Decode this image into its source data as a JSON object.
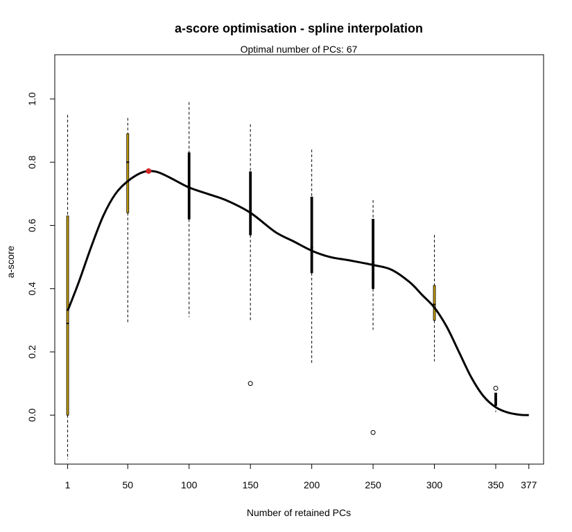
{
  "chart_data": {
    "type": "boxplot",
    "title": "a-score optimisation - spline interpolation",
    "subtitle": "Optimal number of PCs: 67",
    "xlabel": "Number of retained PCs",
    "ylabel": "a-score",
    "xlim": [
      -9.5,
      389
    ],
    "ylim": [
      -0.155,
      1.14
    ],
    "x_ticks": [
      1,
      50,
      100,
      150,
      200,
      250,
      300,
      350,
      377
    ],
    "y_ticks": [
      0.0,
      0.2,
      0.4,
      0.6,
      0.8,
      1.0
    ],
    "boxes": [
      {
        "x": 1,
        "whisker_low": -0.14,
        "q1": 0.0,
        "median": 0.29,
        "q3": 0.63,
        "whisker_high": 0.95,
        "box_color": "#c8a000",
        "outliers": []
      },
      {
        "x": 50,
        "whisker_low": 0.29,
        "q1": 0.64,
        "median": 0.8,
        "q3": 0.89,
        "whisker_high": 0.94,
        "box_color": "#c8a000",
        "outliers": []
      },
      {
        "x": 100,
        "whisker_low": 0.31,
        "q1": 0.62,
        "median": 0.72,
        "q3": 0.83,
        "whisker_high": 0.99,
        "box_color": "#000000",
        "outliers": []
      },
      {
        "x": 150,
        "whisker_low": 0.3,
        "q1": 0.57,
        "median": 0.64,
        "q3": 0.77,
        "whisker_high": 0.92,
        "box_color": "#000000",
        "outliers": [
          0.1
        ]
      },
      {
        "x": 200,
        "whisker_low": 0.16,
        "q1": 0.45,
        "median": 0.53,
        "q3": 0.69,
        "whisker_high": 0.84,
        "box_color": "#000000",
        "outliers": []
      },
      {
        "x": 250,
        "whisker_low": 0.27,
        "q1": 0.4,
        "median": 0.48,
        "q3": 0.62,
        "whisker_high": 0.68,
        "box_color": "#000000",
        "outliers": [
          -0.055
        ]
      },
      {
        "x": 300,
        "whisker_low": 0.17,
        "q1": 0.3,
        "median": 0.35,
        "q3": 0.41,
        "whisker_high": 0.57,
        "box_color": "#c8a000",
        "outliers": []
      },
      {
        "x": 350,
        "whisker_low": 0.01,
        "q1": 0.03,
        "median": 0.05,
        "q3": 0.07,
        "whisker_high": 0.07,
        "box_color": "#000000",
        "outliers": [
          0.085
        ]
      }
    ],
    "spline": {
      "x": [
        1,
        10,
        20,
        30,
        40,
        50,
        60,
        67,
        75,
        85,
        100,
        115,
        130,
        150,
        170,
        185,
        200,
        215,
        230,
        250,
        265,
        280,
        290,
        300,
        310,
        320,
        330,
        340,
        350,
        360,
        370,
        377
      ],
      "y": [
        0.33,
        0.42,
        0.53,
        0.63,
        0.7,
        0.74,
        0.765,
        0.772,
        0.768,
        0.75,
        0.72,
        0.7,
        0.68,
        0.64,
        0.58,
        0.55,
        0.52,
        0.5,
        0.49,
        0.475,
        0.46,
        0.42,
        0.38,
        0.34,
        0.28,
        0.2,
        0.12,
        0.06,
        0.025,
        0.008,
        0.001,
        0.0
      ],
      "color": "#000000"
    },
    "optimum": {
      "x": 67,
      "y": 0.772,
      "color": "#d62728"
    }
  }
}
